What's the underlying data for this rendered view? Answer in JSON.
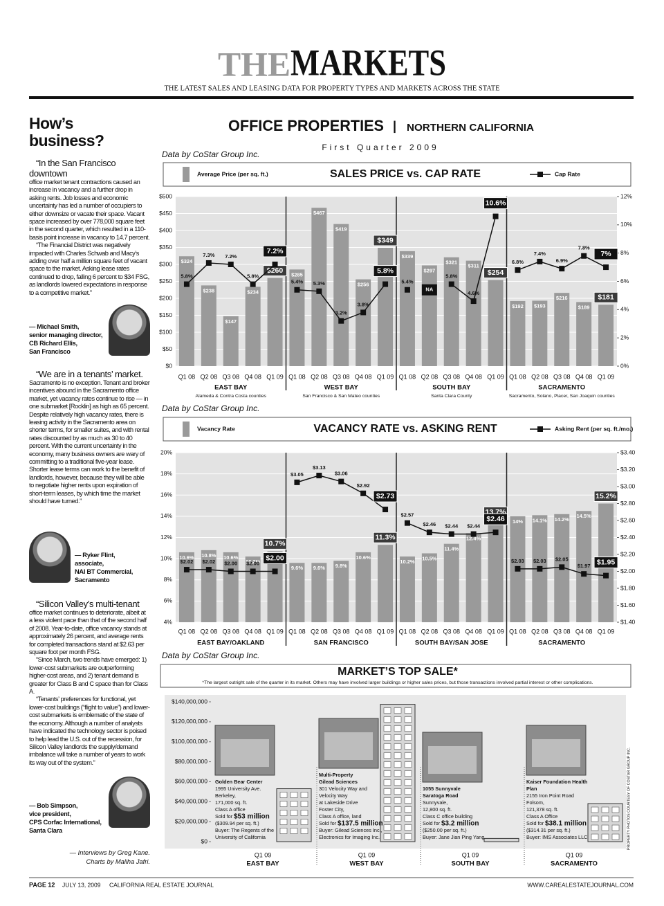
{
  "header": {
    "brand_the": "THE",
    "brand_markets": "MARKETS",
    "tagline": "THE LATEST SALES AND LEASING DATA FOR PROPERTY TYPES AND MARKETS ACROSS THE STATE"
  },
  "section": {
    "title": "OFFICE PROPERTIES",
    "divider": "|",
    "region": "NORTHERN CALIFORNIA",
    "period": "First Quarter 2009"
  },
  "sidebar": {
    "heading": "How’s business?",
    "quotes": [
      {
        "lead": "“In the San Francisco downtown",
        "paragraphs": [
          "office market tenant contractions caused an increase in vacancy and a further drop in asking rents. Job losses and economic uncertainty has led a number of occupiers to either downsize or vacate their space. Vacant space increased by over 778,000 square feet in the second quarter, which resulted in a 110-basis point increase in vacancy to 14.7 percent.",
          "“The Financial District was negatively impacted with Charles Schwab and Macy’s adding over half a million square feet of vacant space to the market. Asking lease rates continued to drop, falling 6 percent to $34 FSG, as landlords lowered expectations in response to a competitive market.”"
        ],
        "attribution": [
          "— Michael Smith,",
          "senior managing director,",
          "CB Richard Ellis,",
          "San Francisco"
        ]
      },
      {
        "lead": "“We are in a tenants’ market.",
        "paragraphs": [
          "Sacramento is no exception. Tenant and broker incentives abound in the Sacramento office market, yet vacancy rates continue to rise — in one submarket [Rocklin] as high as 65 percent. Despite relatively high vacancy rates, there is leasing activity in the Sacramento area on shorter terms, for smaller suites, and with rental rates discounted by as much as 30 to 40 percent. With the current uncertainty in the economy, many business owners are wary of committing to a traditional five-year lease. Shorter lease terms can work to the benefit of landlords, however, because they will be able to negotiate higher rents upon expiration of short-term leases, by which time the market should have turned.”"
        ],
        "attribution": [
          "— Ryker Flint,",
          "associate,",
          "NAI BT Commercial,",
          "Sacramento"
        ]
      },
      {
        "lead": "“Silicon Valley’s multi-tenant",
        "paragraphs": [
          "office market continues to deteriorate, albeit at a less violent pace than that of the second half of 2008. Year-to-date, office vacancy stands at approximately 26 percent, and average rents for completed transactions stand at $2.63 per square foot per month FSG.",
          "“Since March, two trends have emerged: 1) lower-cost submarkets are outperforming higher-cost areas, and 2) tenant demand is greater for Class B and C space than for Class A.",
          "“Tenants’ preferences for functional, yet lower-cost buildings (“flight to value”) and lower-cost submarkets is emblematic of the state of the economy. Although a number of analysts have indicated the technology sector is poised to help lead the U.S. out of the recession, for Silicon Valley landlords the supply/demand imbalance will take a number of years to work its way out of the system.”"
        ],
        "attribution": [
          "— Bob Simpson,",
          "vice president,",
          "CPS Corfac International,",
          "Santa Clara"
        ]
      }
    ],
    "credits": [
      "— Interviews by Greg Kane.",
      "Charts by Maliha Jafri."
    ]
  },
  "chart_data": [
    {
      "type": "bar_line",
      "source": "Data by CoStar Group Inc.",
      "title": "SALES PRICE vs. CAP RATE",
      "categories": [
        "Q1 08",
        "Q2 08",
        "Q3 08",
        "Q4 08",
        "Q1 09",
        "Q1 08",
        "Q2 08",
        "Q3 08",
        "Q4 08",
        "Q1 09",
        "Q1 08",
        "Q2 08",
        "Q3 08",
        "Q4 08",
        "Q1 09",
        "Q1 08",
        "Q2 08",
        "Q3 08",
        "Q4 08",
        "Q1 09"
      ],
      "groups": [
        {
          "name": "EAST BAY",
          "subtitle": "Alameda & Contra Costa counties"
        },
        {
          "name": "WEST BAY",
          "subtitle": "San Francisco & San Mateo counties"
        },
        {
          "name": "SOUTH BAY",
          "subtitle": "Santa Clara County"
        },
        {
          "name": "SACRAMENTO",
          "subtitle": "Sacramento, Solano, Placer, San Joaquin counties"
        }
      ],
      "series": [
        {
          "name": "Average Price (per sq. ft.)",
          "color": "#9a9a9a",
          "values": [
            324,
            238,
            147,
            234,
            260,
            285,
            467,
            419,
            256,
            349,
            339,
            297,
            321,
            311,
            254,
            192,
            193,
            216,
            189,
            181
          ],
          "value_labels": [
            "$324",
            "$238",
            "$147",
            "$234",
            "$260",
            "$285",
            "$467",
            "$419",
            "$256",
            "$349",
            "$339",
            "$297",
            "$321",
            "$311",
            "$254",
            "$192",
            "$193",
            "$216",
            "$189",
            "$181"
          ]
        },
        {
          "name": "Cap Rate",
          "color": "#111111",
          "axis": "y2",
          "values": [
            5.8,
            7.3,
            7.2,
            5.8,
            7.2,
            5.4,
            5.3,
            3.2,
            3.8,
            5.8,
            5.4,
            null,
            5.8,
            4.6,
            10.6,
            6.8,
            7.4,
            6.9,
            7.8,
            7
          ],
          "value_labels": [
            "5.8%",
            "7.3%",
            "7.2%",
            "5.8%",
            "7.2%",
            "5.4%",
            "5.3%",
            "3.2%",
            "3.8%",
            "5.8%",
            "5.4%",
            "NA",
            "5.8%",
            "4.6%",
            "10.6%",
            "6.8%",
            "7.4%",
            "6.9%",
            "7.8%",
            "7%"
          ]
        }
      ],
      "ylim": [
        0,
        500
      ],
      "yticks": [
        {
          "value": 0,
          "label": "$0"
        },
        {
          "value": 50,
          "label": "$50"
        },
        {
          "value": 100,
          "label": "$100"
        },
        {
          "value": 150,
          "label": "$150"
        },
        {
          "value": 200,
          "label": "$200"
        },
        {
          "value": 250,
          "label": "$250"
        },
        {
          "value": 300,
          "label": "$300"
        },
        {
          "value": 350,
          "label": "$350"
        },
        {
          "value": 400,
          "label": "$400"
        },
        {
          "value": 450,
          "label": "$450"
        },
        {
          "value": 500,
          "label": "$500"
        }
      ],
      "y2lim": [
        0,
        12
      ],
      "y2ticks": [
        {
          "value": 0,
          "label": "0%"
        },
        {
          "value": 2,
          "label": "2%"
        },
        {
          "value": 4,
          "label": "4%"
        },
        {
          "value": 6,
          "label": "6%"
        },
        {
          "value": 8,
          "label": "8%"
        },
        {
          "value": 10,
          "label": "10%"
        },
        {
          "value": 12,
          "label": "12%"
        }
      ],
      "grid": true
    },
    {
      "type": "bar_line",
      "source": "Data by CoStar Group Inc.",
      "title": "VACANCY RATE vs. ASKING RENT",
      "categories": [
        "Q1 08",
        "Q2 08",
        "Q3 08",
        "Q4 08",
        "Q1 09",
        "Q1 08",
        "Q2 08",
        "Q3 08",
        "Q4 08",
        "Q1 09",
        "Q1 08",
        "Q2 08",
        "Q3 08",
        "Q4 08",
        "Q1 09",
        "Q1 08",
        "Q2 08",
        "Q3 08",
        "Q4 08",
        "Q1 09"
      ],
      "groups": [
        {
          "name": "EAST BAY/OAKLAND"
        },
        {
          "name": "SAN FRANCISCO"
        },
        {
          "name": "SOUTH BAY/SAN JOSE"
        },
        {
          "name": "SACRAMENTO"
        }
      ],
      "series": [
        {
          "name": "Vacancy Rate",
          "color": "#9a9a9a",
          "values": [
            10.6,
            10.8,
            10.6,
            10.2,
            10.7,
            9.6,
            9.6,
            9.8,
            10.6,
            11.3,
            10.2,
            10.5,
            11.4,
            12.4,
            13.7,
            14,
            14.1,
            14.2,
            14.5,
            15.2
          ],
          "value_labels": [
            "10.6%",
            "10.8%",
            "10.6%",
            "10.2%",
            "10.7%",
            "9.6%",
            "9.6%",
            "9.8%",
            "10.6%",
            "11.3%",
            "10.2%",
            "10.5%",
            "11.4%",
            "12.4%",
            "13.7%",
            "14%",
            "14.1%",
            "14.2%",
            "14.5%",
            "15.2%"
          ]
        },
        {
          "name": "Asking Rent (per sq. ft./mo.)",
          "color": "#111111",
          "axis": "y2",
          "values": [
            2.02,
            2.02,
            2.0,
            2.0,
            2.0,
            3.05,
            3.13,
            3.06,
            2.92,
            2.73,
            2.57,
            2.46,
            2.44,
            2.44,
            2.46,
            2.03,
            2.03,
            2.05,
            1.97,
            1.95
          ],
          "value_labels": [
            "$2.02",
            "$2.02",
            "$2.00",
            "$2.00",
            "$2.00",
            "$3.05",
            "$3.13",
            "$3.06",
            "$2.92",
            "$2.73",
            "$2.57",
            "$2.46",
            "$2.44",
            "$2.44",
            "$2.46",
            "$2.03",
            "$2.03",
            "$2.05",
            "$1.97",
            "$1.95"
          ]
        }
      ],
      "ylim": [
        4,
        20
      ],
      "yticks": [
        {
          "value": 4,
          "label": "4%"
        },
        {
          "value": 6,
          "label": "6%"
        },
        {
          "value": 8,
          "label": "8%"
        },
        {
          "value": 10,
          "label": "10%"
        },
        {
          "value": 12,
          "label": "12%"
        },
        {
          "value": 14,
          "label": "14%"
        },
        {
          "value": 16,
          "label": "16%"
        },
        {
          "value": 18,
          "label": "18%"
        },
        {
          "value": 20,
          "label": "20%"
        }
      ],
      "y2lim": [
        1.4,
        3.4
      ],
      "y2ticks": [
        {
          "value": 1.4,
          "label": "$1.40"
        },
        {
          "value": 1.6,
          "label": "$1.60"
        },
        {
          "value": 1.8,
          "label": "$1.80"
        },
        {
          "value": 2.0,
          "label": "$2.00"
        },
        {
          "value": 2.2,
          "label": "$2.20"
        },
        {
          "value": 2.4,
          "label": "$2.40"
        },
        {
          "value": 2.6,
          "label": "$2.60"
        },
        {
          "value": 2.8,
          "label": "$2.80"
        },
        {
          "value": 3.0,
          "label": "$3.00"
        },
        {
          "value": 3.2,
          "label": "$3.20"
        },
        {
          "value": 3.4,
          "label": "$3.40"
        }
      ],
      "grid": true
    },
    {
      "type": "building_bar",
      "source": "Data by CoStar Group Inc.",
      "title": "MARKET’S TOP SALE*",
      "note": "*The largest outright sale of the quarter in its market. Others may have involved larger buildings or higher sales prices, but those transactions involved partial interest or other complications.",
      "categories": [
        "Q1 09",
        "Q1 09",
        "Q1 09",
        "Q1 09"
      ],
      "groups": [
        {
          "name": "EAST BAY"
        },
        {
          "name": "WEST BAY"
        },
        {
          "name": "SOUTH BAY"
        },
        {
          "name": "SACRAMENTO"
        }
      ],
      "values": [
        53000000,
        137500000,
        3200000,
        38100000
      ],
      "value_labels": [
        "$53 million",
        "$137.5 million",
        "$3.2 million",
        "$38.1 million"
      ],
      "color": "#d6d6d6",
      "captions": [
        {
          "title_lines": [
            "Golden Bear Center"
          ],
          "lines": [
            "1995 University Ave.",
            "Berkeley,",
            "171,000 sq. ft.",
            "Class A office"
          ],
          "sold_prefix": "Sold for",
          "after": [
            "($309.94 per sq. ft.)",
            "Buyer: The Regents of the",
            "University of California"
          ]
        },
        {
          "title_lines": [
            "Multi-Property",
            "Gilead Sciences"
          ],
          "lines": [
            "301 Velocity Way and",
            "Velocity Way",
            "at Lakeside Drive",
            "Foster City,",
            "Class A office, land"
          ],
          "sold_prefix": "Sold for",
          "after": [
            "Buyer: Gilead Sciences Inc.,",
            "Electronics for Imaging Inc."
          ]
        },
        {
          "title_lines": [
            "1055 Sunnyvale",
            "Saratoga Road"
          ],
          "lines": [
            "Sunnyvale,",
            "12,800 sq. ft.",
            "Class C office building"
          ],
          "sold_prefix": "Sold for",
          "after": [
            "($250.00 per sq. ft.)",
            "Buyer: Jane Jian Ping Yang"
          ]
        },
        {
          "title_lines": [
            "Kaiser Foundation Health",
            "Plan"
          ],
          "lines": [
            "2155 Iron Point Road",
            "Folsom,",
            "121,378 sq. ft.",
            "Class A Office"
          ],
          "sold_prefix": "Sold for",
          "after": [
            "($314.31 per sq. ft.)",
            "Buyer: IMS Associates LLC"
          ]
        }
      ],
      "ylim": [
        0,
        140000000
      ],
      "yticks": [
        {
          "value": 0,
          "label": "$0"
        },
        {
          "value": 20000000,
          "label": "$20,000,000"
        },
        {
          "value": 40000000,
          "label": "$40,000,000"
        },
        {
          "value": 60000000,
          "label": "$60,000,000"
        },
        {
          "value": 80000000,
          "label": "$80,000,000"
        },
        {
          "value": 100000000,
          "label": "$100,000,000"
        },
        {
          "value": 120000000,
          "label": "$120,000,000"
        },
        {
          "value": 140000000,
          "label": "$140,000,000"
        }
      ],
      "photo_credit": "PROPERTY PHOTOS COURTESY OF COSTAR GROUP INC."
    }
  ],
  "footer": {
    "page": "PAGE 12",
    "date": "JULY 13, 2009",
    "publication": "CALIFORNIA REAL ESTATE JOURNAL",
    "url": "WWW.CAREALESTATEJOURNAL.COM"
  }
}
